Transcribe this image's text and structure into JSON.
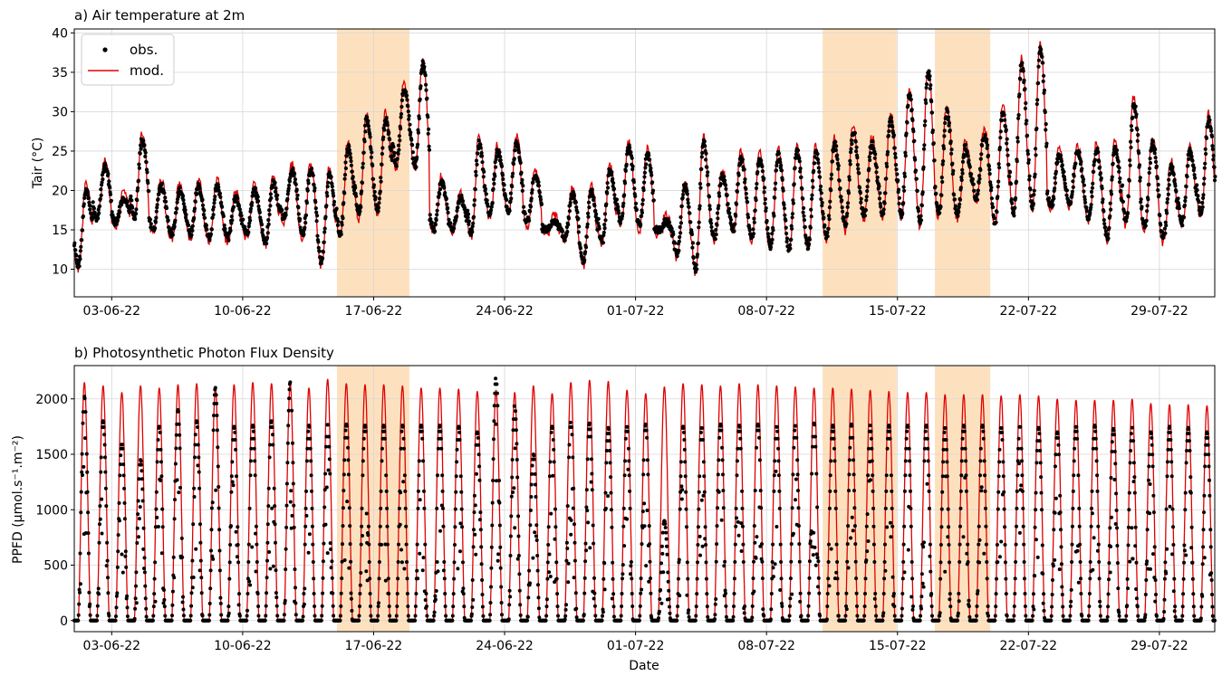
{
  "colors": {
    "obs": "#000000",
    "mod": "#e00000",
    "highlight": "#fde1bf",
    "grid": "#d6d6d6"
  },
  "x_tick_labels": [
    "03-06-22",
    "10-06-22",
    "17-06-22",
    "24-06-22",
    "01-07-22",
    "08-07-22",
    "15-07-22",
    "22-07-22",
    "29-07-22"
  ],
  "highlight_periods": [
    {
      "start": "2022-06-15T01:00",
      "end": "2022-06-18T22:00"
    },
    {
      "start": "2022-07-11T00:00",
      "end": "2022-07-14T23:00"
    },
    {
      "start": "2022-07-17T00:00",
      "end": "2022-07-19T23:00"
    }
  ],
  "chart_data": [
    {
      "type": "line",
      "title": "a) Air temperature at 2m",
      "ylabel": "Tair (°C)",
      "xlim": [
        "2022-06-01T00:00",
        "2022-07-31T23:00"
      ],
      "ylim": [
        6.5,
        40.5
      ],
      "y_ticks": [
        10,
        15,
        20,
        25,
        30,
        35,
        40
      ],
      "grid": true,
      "legend": "top-left",
      "series": [
        {
          "name": "obs.",
          "style": "points"
        },
        {
          "name": "mod.",
          "style": "line"
        }
      ],
      "daily_min": [
        10.5,
        16.5,
        16,
        16.5,
        15,
        14.5,
        14.5,
        14,
        14,
        14.5,
        13.5,
        16.5,
        14.5,
        11,
        14.5,
        17,
        17.5,
        23.5,
        23,
        15,
        15,
        14.5,
        17,
        17.5,
        16,
        15,
        14,
        11,
        13.5,
        16,
        15.5,
        15,
        12,
        10,
        14,
        15,
        14,
        13,
        12.5,
        13,
        14,
        15.5,
        17,
        17,
        17,
        16,
        17,
        17,
        19,
        16,
        17,
        18,
        18,
        18.5,
        16.5,
        14,
        16,
        15.5,
        14,
        16,
        17
      ],
      "daily_max": [
        20,
        23,
        19,
        26.5,
        20.5,
        20,
        20.5,
        20.5,
        19,
        20,
        21,
        22.5,
        22.5,
        22,
        25.5,
        29,
        29,
        33,
        36,
        21,
        19,
        26,
        25,
        26,
        22,
        16,
        19.5,
        20,
        22.5,
        25.5,
        24.5,
        16,
        20.5,
        26,
        22,
        24,
        24,
        24.5,
        25,
        25,
        26,
        27.5,
        26,
        29,
        32,
        35,
        30,
        25.5,
        27,
        30,
        36,
        38,
        24.5,
        25,
        25,
        25.5,
        31,
        26,
        23,
        25,
        29
      ]
    },
    {
      "type": "line",
      "title": "b) Photosynthetic Photon Flux Density",
      "ylabel": "PPFD (µmol.s⁻¹.m⁻²)",
      "xlabel": "Date",
      "xlim": [
        "2022-06-01T00:00",
        "2022-07-31T23:00"
      ],
      "ylim": [
        -100,
        2300
      ],
      "y_ticks": [
        0,
        500,
        1000,
        1500,
        2000
      ],
      "grid": true,
      "series": [
        {
          "name": "obs.",
          "style": "points"
        },
        {
          "name": "mod.",
          "style": "line"
        }
      ],
      "daily_peak_mod": [
        2150,
        2120,
        2060,
        2120,
        2100,
        2130,
        2140,
        2100,
        2130,
        2150,
        2140,
        2140,
        2100,
        2180,
        2140,
        2130,
        2130,
        2120,
        2100,
        2100,
        2090,
        2070,
        2080,
        2060,
        2120,
        2050,
        2150,
        2170,
        2160,
        2080,
        2050,
        2110,
        2140,
        2130,
        2120,
        2140,
        2130,
        2120,
        2110,
        2100,
        2100,
        2090,
        2080,
        2070,
        2060,
        2060,
        2040,
        2040,
        2040,
        2030,
        2040,
        2030,
        2000,
        1990,
        1990,
        1990,
        2000,
        1960,
        1950,
        1950,
        1940
      ],
      "daily_peak_obs": [
        2020,
        1800,
        1600,
        1450,
        1750,
        1900,
        1800,
        2100,
        1750,
        1760,
        1800,
        2150,
        1760,
        1780,
        1770,
        1760,
        1760,
        1760,
        1760,
        1760,
        1750,
        1700,
        2200,
        1950,
        1500,
        1750,
        1800,
        1780,
        1740,
        1760,
        1770,
        900,
        1750,
        1750,
        1770,
        1760,
        1770,
        1760,
        1770,
        1780,
        1760,
        1770,
        1760,
        1760,
        1760,
        1760,
        1750,
        1760,
        1760,
        1750,
        1760,
        1740,
        1700,
        1760,
        1760,
        1730,
        1740,
        1700,
        1750,
        1740,
        1700
      ]
    }
  ]
}
